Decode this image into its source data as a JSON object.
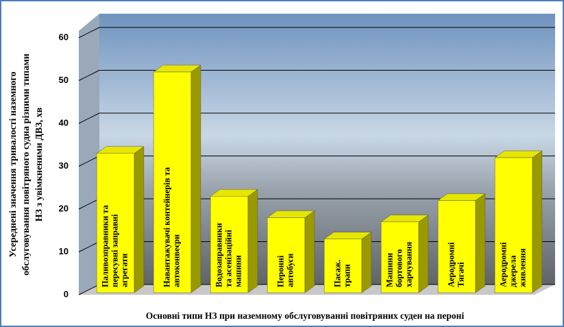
{
  "chart_data": {
    "type": "bar3d",
    "y_label": [
      "Усереднені значення тривалості наземного",
      "обслуговування повітряного  судна різними типами",
      "НЗ з увімкненими ДВЗ, хв"
    ],
    "x_label": "Основні типи НЗ при наземному обслуговуванні повітряних  суден на пероні",
    "categories": [
      [
        "Паливозправники та",
        "пересувні заправні",
        "агрегати"
      ],
      [
        "Навантажувачі контейнерів та",
        "автоконвеєри"
      ],
      [
        "Водозаправники",
        "та асенізаційні",
        "машини"
      ],
      [
        "Перонні",
        "автобуси"
      ],
      [
        "Пасаж.",
        "трапи"
      ],
      [
        "Машини",
        "бортового",
        "харчування"
      ],
      [
        "Аеродромні",
        "Тягачі"
      ],
      [
        "Аеродромні",
        "джерела",
        "живлення"
      ]
    ],
    "values": [
      33,
      52,
      23,
      18,
      13,
      17,
      22,
      32
    ],
    "color": "#ffff00",
    "ylim": [
      0,
      60
    ],
    "yticks": [
      0,
      10,
      20,
      30,
      40,
      50,
      60
    ],
    "grid": true
  }
}
